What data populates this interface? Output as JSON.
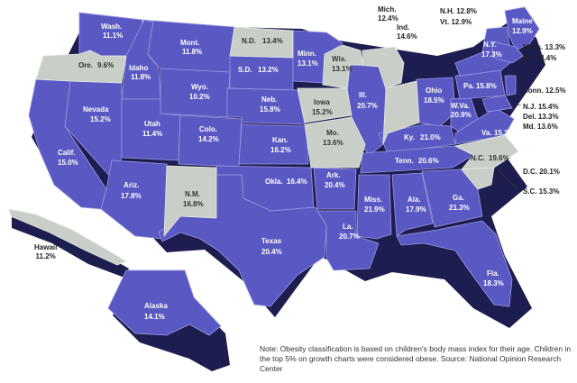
{
  "colors": {
    "high": "#5a59c4",
    "low": "#c9cfc8",
    "shadow": "#1e1d50",
    "ocean": "#ffffff"
  },
  "states": {
    "wash": {
      "name": "Wash.",
      "value": "11.1%"
    },
    "ore": {
      "name": "Ore.",
      "value": "9.6%"
    },
    "calif": {
      "name": "Calif.",
      "value": "15.0%"
    },
    "idaho": {
      "name": "Idaho",
      "value": "11.8%"
    },
    "nevada": {
      "name": "Nevada",
      "value": "15.2%"
    },
    "mont": {
      "name": "Mont.",
      "value": "11.8%"
    },
    "wyo": {
      "name": "Wyo.",
      "value": "10.2%"
    },
    "utah": {
      "name": "Utah",
      "value": "11.4%"
    },
    "colo": {
      "name": "Colo.",
      "value": "14.2%"
    },
    "ariz": {
      "name": "Ariz.",
      "value": "17.8%"
    },
    "nm": {
      "name": "N.M.",
      "value": "16.8%"
    },
    "nd": {
      "name": "N.D.",
      "value": "13.4%"
    },
    "sd": {
      "name": "S.D.",
      "value": "13.2%"
    },
    "neb": {
      "name": "Neb.",
      "value": "15.8%"
    },
    "kan": {
      "name": "Kan.",
      "value": "16.2%"
    },
    "okla": {
      "name": "Okla.",
      "value": "16.4%"
    },
    "texas": {
      "name": "Texas",
      "value": "20.4%"
    },
    "minn": {
      "name": "Minn.",
      "value": "13.1%"
    },
    "iowa": {
      "name": "Iowa",
      "value": "15.2%"
    },
    "mo": {
      "name": "Mo.",
      "value": "13.6%"
    },
    "ark": {
      "name": "Ark.",
      "value": "20.4%"
    },
    "la": {
      "name": "La.",
      "value": "20.7%"
    },
    "wis": {
      "name": "Wis.",
      "value": "13.1%"
    },
    "ill": {
      "name": "Ill.",
      "value": "20.7%"
    },
    "ohio": {
      "name": "Ohio",
      "value": "18.5%"
    },
    "ky": {
      "name": "Ky.",
      "value": "21.0%"
    },
    "tenn": {
      "name": "Tenn.",
      "value": "20.6%"
    },
    "miss": {
      "name": "Miss.",
      "value": "21.9%"
    },
    "ala": {
      "name": "Ala.",
      "value": "17.9%"
    },
    "ga": {
      "name": "Ga.",
      "value": "21.3%"
    },
    "fla": {
      "name": "Fla.",
      "value": "18.3%"
    },
    "ny": {
      "name": "N.Y.",
      "value": "17.3%"
    },
    "pa": {
      "name": "Pa.",
      "value": "15.8%"
    },
    "wva": {
      "name": "W.Va.",
      "value": "20.9%"
    },
    "va": {
      "name": "Va.",
      "value": "15.2%"
    },
    "nc": {
      "name": "N.C.",
      "value": "19.6%"
    },
    "maine": {
      "name": "Maine",
      "value": "12.9%"
    },
    "alaska": {
      "name": "Alaska",
      "value": "14.1%"
    },
    "hawaii": {
      "name": "Hawaii",
      "value": "11.2%"
    },
    "mich": {
      "name": "Mich.",
      "value": "12.4%"
    },
    "ind": {
      "name": "Ind.",
      "value": "14.6%"
    },
    "nh": {
      "name": "N.H.",
      "value": "12.8%"
    },
    "vt": {
      "name": "Vt.",
      "value": "12.9%"
    },
    "mass": {
      "name": "Mass.",
      "value": "13.3%"
    },
    "ri": {
      "name": "R.I.",
      "value": "14.4%"
    },
    "conn": {
      "name": "Conn.",
      "value": "12.5%"
    },
    "nj": {
      "name": "N.J.",
      "value": "15.4%"
    },
    "del": {
      "name": "Del.",
      "value": "13.3%"
    },
    "md": {
      "name": "Md.",
      "value": "13.6%"
    },
    "dc": {
      "name": "D.C.",
      "value": "20.1%"
    },
    "sc": {
      "name": "S.C.",
      "value": "15.3%"
    }
  },
  "note": "Note: Obesity classification is based on children's body mass index for their age. Children in the top 5% on growth charts were considered obese.  Source: National Opinion Research Center"
}
